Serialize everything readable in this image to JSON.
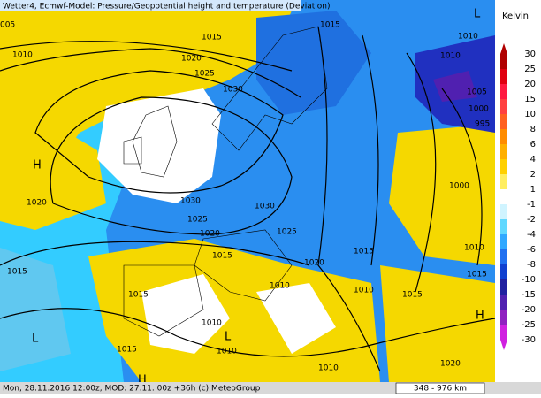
{
  "header": {
    "title": "Wetter4, Ecmwf-Model: Pressure/Geopotential height and temperature (Deviation)"
  },
  "footer": {
    "text": "Mon, 28.11.2016 12:00z, MOD: 27.11. 00z +36h (c) MeteoGroup",
    "scale": "348 - 976 km"
  },
  "legend": {
    "unit": "Kelvin",
    "labels": [
      "30",
      "25",
      "20",
      "15",
      "10",
      "8",
      "6",
      "4",
      "2",
      "1",
      "-1",
      "-2",
      "-4",
      "-6",
      "-8",
      "-10",
      "-15",
      "-20",
      "-25",
      "-30"
    ],
    "colors": [
      "#b00000",
      "#e00010",
      "#ff1a40",
      "#ff4040",
      "#ff6020",
      "#ff8c00",
      "#ffb000",
      "#ffd000",
      "#ffee60",
      "#ffffff",
      "#d0f4ff",
      "#60d8ff",
      "#30a8ff",
      "#2070f0",
      "#1040d0",
      "#2020a0",
      "#5020b0",
      "#9020c0",
      "#d020e0"
    ]
  },
  "isobar_labels": [
    "005",
    "1010",
    "1015",
    "1020",
    "1025",
    "1030",
    "1015",
    "1010",
    "1010",
    "1005",
    "1000",
    "995",
    "1020",
    "1030",
    "1030",
    "1025",
    "1025",
    "1020",
    "1015",
    "1020",
    "1015",
    "1010",
    "1015",
    "1000",
    "1010",
    "1015",
    "1010",
    "1015",
    "1015",
    "1015",
    "1010",
    "1010",
    "1020",
    "1010"
  ],
  "pressure_centers": [
    "H",
    "L",
    "H",
    "L",
    "L",
    "H"
  ]
}
